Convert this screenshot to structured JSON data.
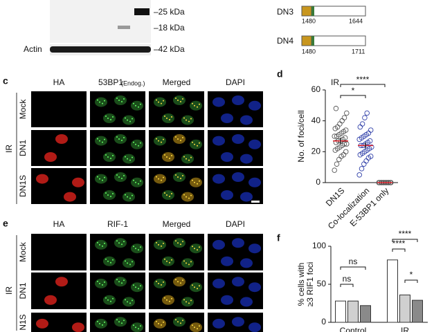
{
  "blot": {
    "markers": [
      "–25 kDa",
      "–18 kDa",
      "–42 kDa"
    ],
    "loading_label": "Actin"
  },
  "constructs": [
    {
      "name": "DN3",
      "start": "1480",
      "end": "1644"
    },
    {
      "name": "DN4",
      "start": "1480",
      "end": "1711"
    }
  ],
  "panel_c": {
    "label": "c",
    "columns": [
      "HA",
      "53BP1",
      "Merged",
      "DAPI"
    ],
    "column_note": "(Endog.)",
    "condition": "IR",
    "rows": [
      "Mock",
      "DN1",
      "DN1S"
    ]
  },
  "panel_e": {
    "label": "e",
    "columns": [
      "HA",
      "RIF-1",
      "Merged",
      "DAPI"
    ],
    "condition": "IR",
    "rows": [
      "Mock",
      "DN1",
      "N1S"
    ]
  },
  "chart_data": [
    {
      "type": "strip",
      "panel": "d",
      "title": "IR",
      "ylabel": "No. of foci/cell",
      "categories": [
        "DN1S",
        "Co-localization",
        "E-53BP1 only"
      ],
      "colors": [
        "#555555",
        "#2f3fa8",
        "#555555"
      ],
      "values": [
        [
          8,
          12,
          15,
          17,
          18,
          20,
          21,
          22,
          23,
          24,
          25,
          25,
          26,
          27,
          27,
          28,
          29,
          30,
          30,
          31,
          32,
          33,
          34,
          35,
          36,
          38,
          40,
          42,
          45,
          48
        ],
        [
          5,
          9,
          12,
          14,
          16,
          17,
          18,
          19,
          20,
          21,
          22,
          23,
          24,
          24,
          25,
          26,
          27,
          28,
          29,
          30,
          31,
          32,
          34,
          36,
          38,
          42,
          45
        ],
        [
          0,
          0,
          0,
          0,
          0,
          0,
          0,
          0,
          0,
          0,
          0,
          0
        ]
      ],
      "means": [
        27,
        24,
        0
      ],
      "errors": [
        2,
        2,
        0
      ],
      "mean_color": "#e0202a",
      "annotations": [
        "*",
        "****"
      ],
      "ylim": [
        0,
        60
      ],
      "yticks": [
        0,
        20,
        40,
        60
      ]
    },
    {
      "type": "bar",
      "panel": "f",
      "ylabel": [
        "% cells with",
        "≥3 RIF1 foci"
      ],
      "categories": [
        "Control",
        "IR"
      ],
      "series": [
        {
          "color": "#ffffff",
          "values": [
            28,
            82
          ]
        },
        {
          "color": "#d0d0d0",
          "values": [
            28,
            36
          ]
        },
        {
          "color": "#8a8a8a",
          "values": [
            22,
            29
          ]
        }
      ],
      "annotations": [
        "ns",
        "ns",
        "****",
        "****",
        "*"
      ],
      "ylim": [
        0,
        100
      ],
      "yticks": [
        0,
        50,
        100
      ]
    }
  ]
}
